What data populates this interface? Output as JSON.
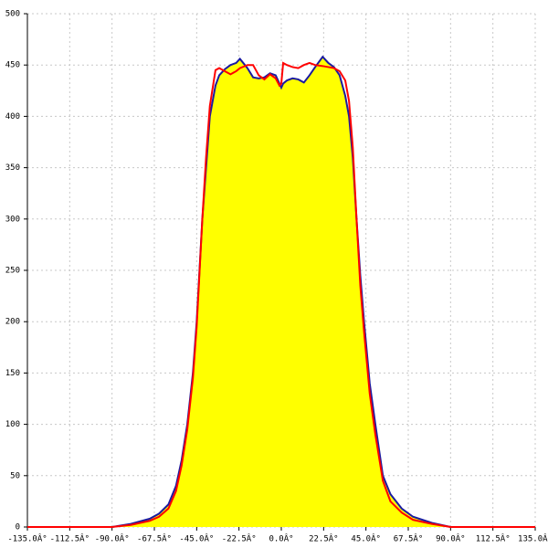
{
  "chart_data": {
    "type": "area",
    "x": [
      -135,
      -90,
      -80,
      -70,
      -65,
      -60,
      -56,
      -53,
      -50,
      -47,
      -45,
      -42,
      -40,
      -38,
      -35,
      -33,
      -30,
      -27,
      -24,
      -22,
      -18,
      -15,
      -12,
      -9,
      -6,
      -3,
      -1,
      0,
      1,
      3,
      6,
      9,
      12,
      15,
      18,
      22,
      25,
      28,
      31,
      34,
      36,
      38,
      40,
      42,
      44,
      47,
      50,
      54,
      58,
      64,
      70,
      80,
      90,
      135
    ],
    "series": [
      {
        "color": "#1a1aa0",
        "fill": "#ffff00",
        "values": [
          0,
          0,
          3,
          8,
          13,
          22,
          40,
          65,
          100,
          150,
          200,
          300,
          350,
          400,
          430,
          440,
          446,
          450,
          452,
          456,
          447,
          438,
          437,
          438,
          442,
          440,
          432,
          428,
          432,
          435,
          437,
          436,
          433,
          440,
          448,
          458,
          452,
          448,
          440,
          420,
          400,
          360,
          300,
          245,
          200,
          140,
          100,
          50,
          32,
          18,
          10,
          4,
          0,
          0
        ]
      },
      {
        "color": "#ff0000",
        "values": [
          0,
          0,
          2,
          6,
          10,
          18,
          35,
          60,
          95,
          145,
          195,
          300,
          360,
          410,
          445,
          447,
          444,
          441,
          444,
          447,
          450,
          450,
          440,
          436,
          441,
          437,
          430,
          432,
          452,
          450,
          448,
          447,
          450,
          452,
          450,
          449,
          448,
          447,
          444,
          435,
          415,
          370,
          300,
          235,
          190,
          130,
          90,
          45,
          25,
          14,
          7,
          3,
          0,
          0
        ]
      }
    ],
    "xlim": [
      -135,
      135
    ],
    "xticks": [
      {
        "value": -135,
        "label": "-135.0Â°"
      },
      {
        "value": -112.5,
        "label": "-112.5Â°"
      },
      {
        "value": -90,
        "label": "-90.0Â°"
      },
      {
        "value": -67.5,
        "label": "-67.5Â°"
      },
      {
        "value": -45,
        "label": "-45.0Â°"
      },
      {
        "value": -22.5,
        "label": "-22.5Â°"
      },
      {
        "value": 0,
        "label": "0.0Â°"
      },
      {
        "value": 22.5,
        "label": "22.5Â°"
      },
      {
        "value": 45,
        "label": "45.0Â°"
      },
      {
        "value": 67.5,
        "label": "67.5Â°"
      },
      {
        "value": 90,
        "label": "90.0Â°"
      },
      {
        "value": 112.5,
        "label": "112.5Â°"
      },
      {
        "value": 135,
        "label": "135.0Â°"
      }
    ],
    "ylim": [
      0,
      500
    ],
    "yticks": [
      0,
      50,
      100,
      150,
      200,
      250,
      300,
      350,
      400,
      450,
      500
    ],
    "grid": true
  }
}
